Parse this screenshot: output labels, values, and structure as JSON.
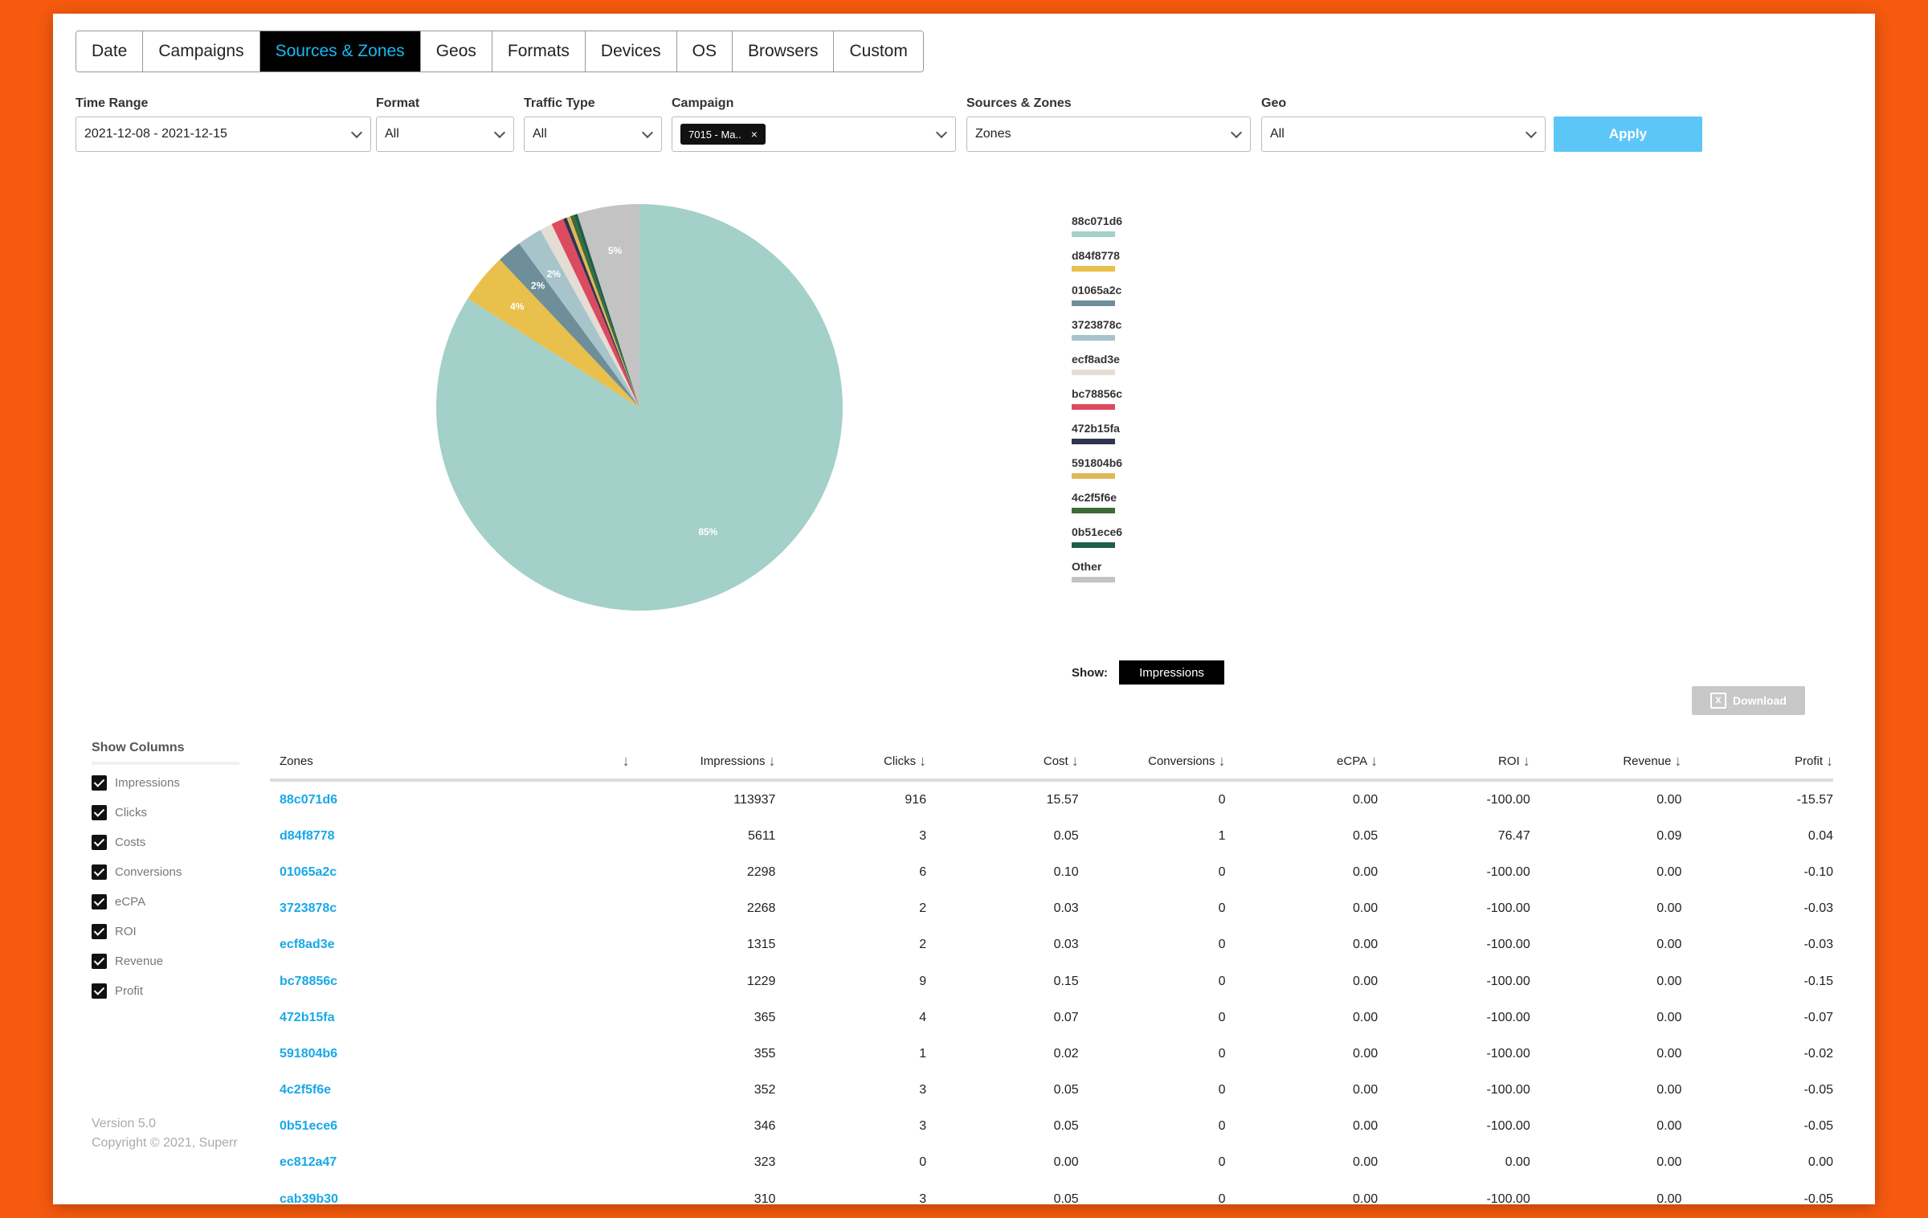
{
  "tabs": [
    "Date",
    "Campaigns",
    "Sources & Zones",
    "Geos",
    "Formats",
    "Devices",
    "OS",
    "Browsers",
    "Custom"
  ],
  "active_tab": "Sources & Zones",
  "filters": {
    "time_range": {
      "label": "Time Range",
      "value": "2021-12-08 - 2021-12-15"
    },
    "format": {
      "label": "Format",
      "value": "All"
    },
    "traffic_type": {
      "label": "Traffic Type",
      "value": "All"
    },
    "campaign": {
      "label": "Campaign",
      "chip": "7015 - Ma..",
      "chip_close": "×"
    },
    "sources_zones": {
      "label": "Sources & Zones",
      "value": "Zones"
    },
    "geo": {
      "label": "Geo",
      "value": "All"
    },
    "apply_label": "Apply"
  },
  "chart_data": {
    "type": "pie",
    "title": "",
    "slices": [
      {
        "label": "88c071d6",
        "value": 85,
        "color": "#a3d0c8"
      },
      {
        "label": "d84f8778",
        "value": 4,
        "color": "#e9c04b"
      },
      {
        "label": "01065a2c",
        "value": 2,
        "color": "#6e8f99"
      },
      {
        "label": "3723878c",
        "value": 2,
        "color": "#a7c4cb"
      },
      {
        "label": "ecf8ad3e",
        "value": 1,
        "color": "#e4ddd3"
      },
      {
        "label": "bc78856c",
        "value": 1,
        "color": "#dc4a60"
      },
      {
        "label": "472b15fa",
        "value": 0.3,
        "color": "#2f3551"
      },
      {
        "label": "591804b6",
        "value": 0.3,
        "color": "#e0b858"
      },
      {
        "label": "4c2f5f6e",
        "value": 0.3,
        "color": "#3d6b33"
      },
      {
        "label": "0b51ece6",
        "value": 0.3,
        "color": "#1d5e4c"
      },
      {
        "label": "Other",
        "value": 5,
        "color": "#c3c3c3"
      }
    ],
    "data_labels": [
      "85%",
      "4%",
      "2%",
      "2%",
      "5%"
    ]
  },
  "show": {
    "label": "Show:",
    "value": "Impressions"
  },
  "download_label": "Download",
  "show_columns": {
    "title": "Show Columns",
    "items": [
      "Impressions",
      "Clicks",
      "Costs",
      "Conversions",
      "eCPA",
      "ROI",
      "Revenue",
      "Profit"
    ]
  },
  "footer": {
    "version": "Version 5.0",
    "copyright": "Copyright © 2021, Superr"
  },
  "table": {
    "headers": [
      "Zones",
      "Impressions",
      "Clicks",
      "Cost",
      "Conversions",
      "eCPA",
      "ROI",
      "Revenue",
      "Profit"
    ],
    "rows": [
      [
        "88c071d6",
        "113937",
        "916",
        "15.57",
        "0",
        "0.00",
        "-100.00",
        "0.00",
        "-15.57"
      ],
      [
        "d84f8778",
        "5611",
        "3",
        "0.05",
        "1",
        "0.05",
        "76.47",
        "0.09",
        "0.04"
      ],
      [
        "01065a2c",
        "2298",
        "6",
        "0.10",
        "0",
        "0.00",
        "-100.00",
        "0.00",
        "-0.10"
      ],
      [
        "3723878c",
        "2268",
        "2",
        "0.03",
        "0",
        "0.00",
        "-100.00",
        "0.00",
        "-0.03"
      ],
      [
        "ecf8ad3e",
        "1315",
        "2",
        "0.03",
        "0",
        "0.00",
        "-100.00",
        "0.00",
        "-0.03"
      ],
      [
        "bc78856c",
        "1229",
        "9",
        "0.15",
        "0",
        "0.00",
        "-100.00",
        "0.00",
        "-0.15"
      ],
      [
        "472b15fa",
        "365",
        "4",
        "0.07",
        "0",
        "0.00",
        "-100.00",
        "0.00",
        "-0.07"
      ],
      [
        "591804b6",
        "355",
        "1",
        "0.02",
        "0",
        "0.00",
        "-100.00",
        "0.00",
        "-0.02"
      ],
      [
        "4c2f5f6e",
        "352",
        "3",
        "0.05",
        "0",
        "0.00",
        "-100.00",
        "0.00",
        "-0.05"
      ],
      [
        "0b51ece6",
        "346",
        "3",
        "0.05",
        "0",
        "0.00",
        "-100.00",
        "0.00",
        "-0.05"
      ],
      [
        "ec812a47",
        "323",
        "0",
        "0.00",
        "0",
        "0.00",
        "0.00",
        "0.00",
        "0.00"
      ],
      [
        "cab39b30",
        "310",
        "3",
        "0.05",
        "0",
        "0.00",
        "-100.00",
        "0.00",
        "-0.05"
      ]
    ]
  }
}
